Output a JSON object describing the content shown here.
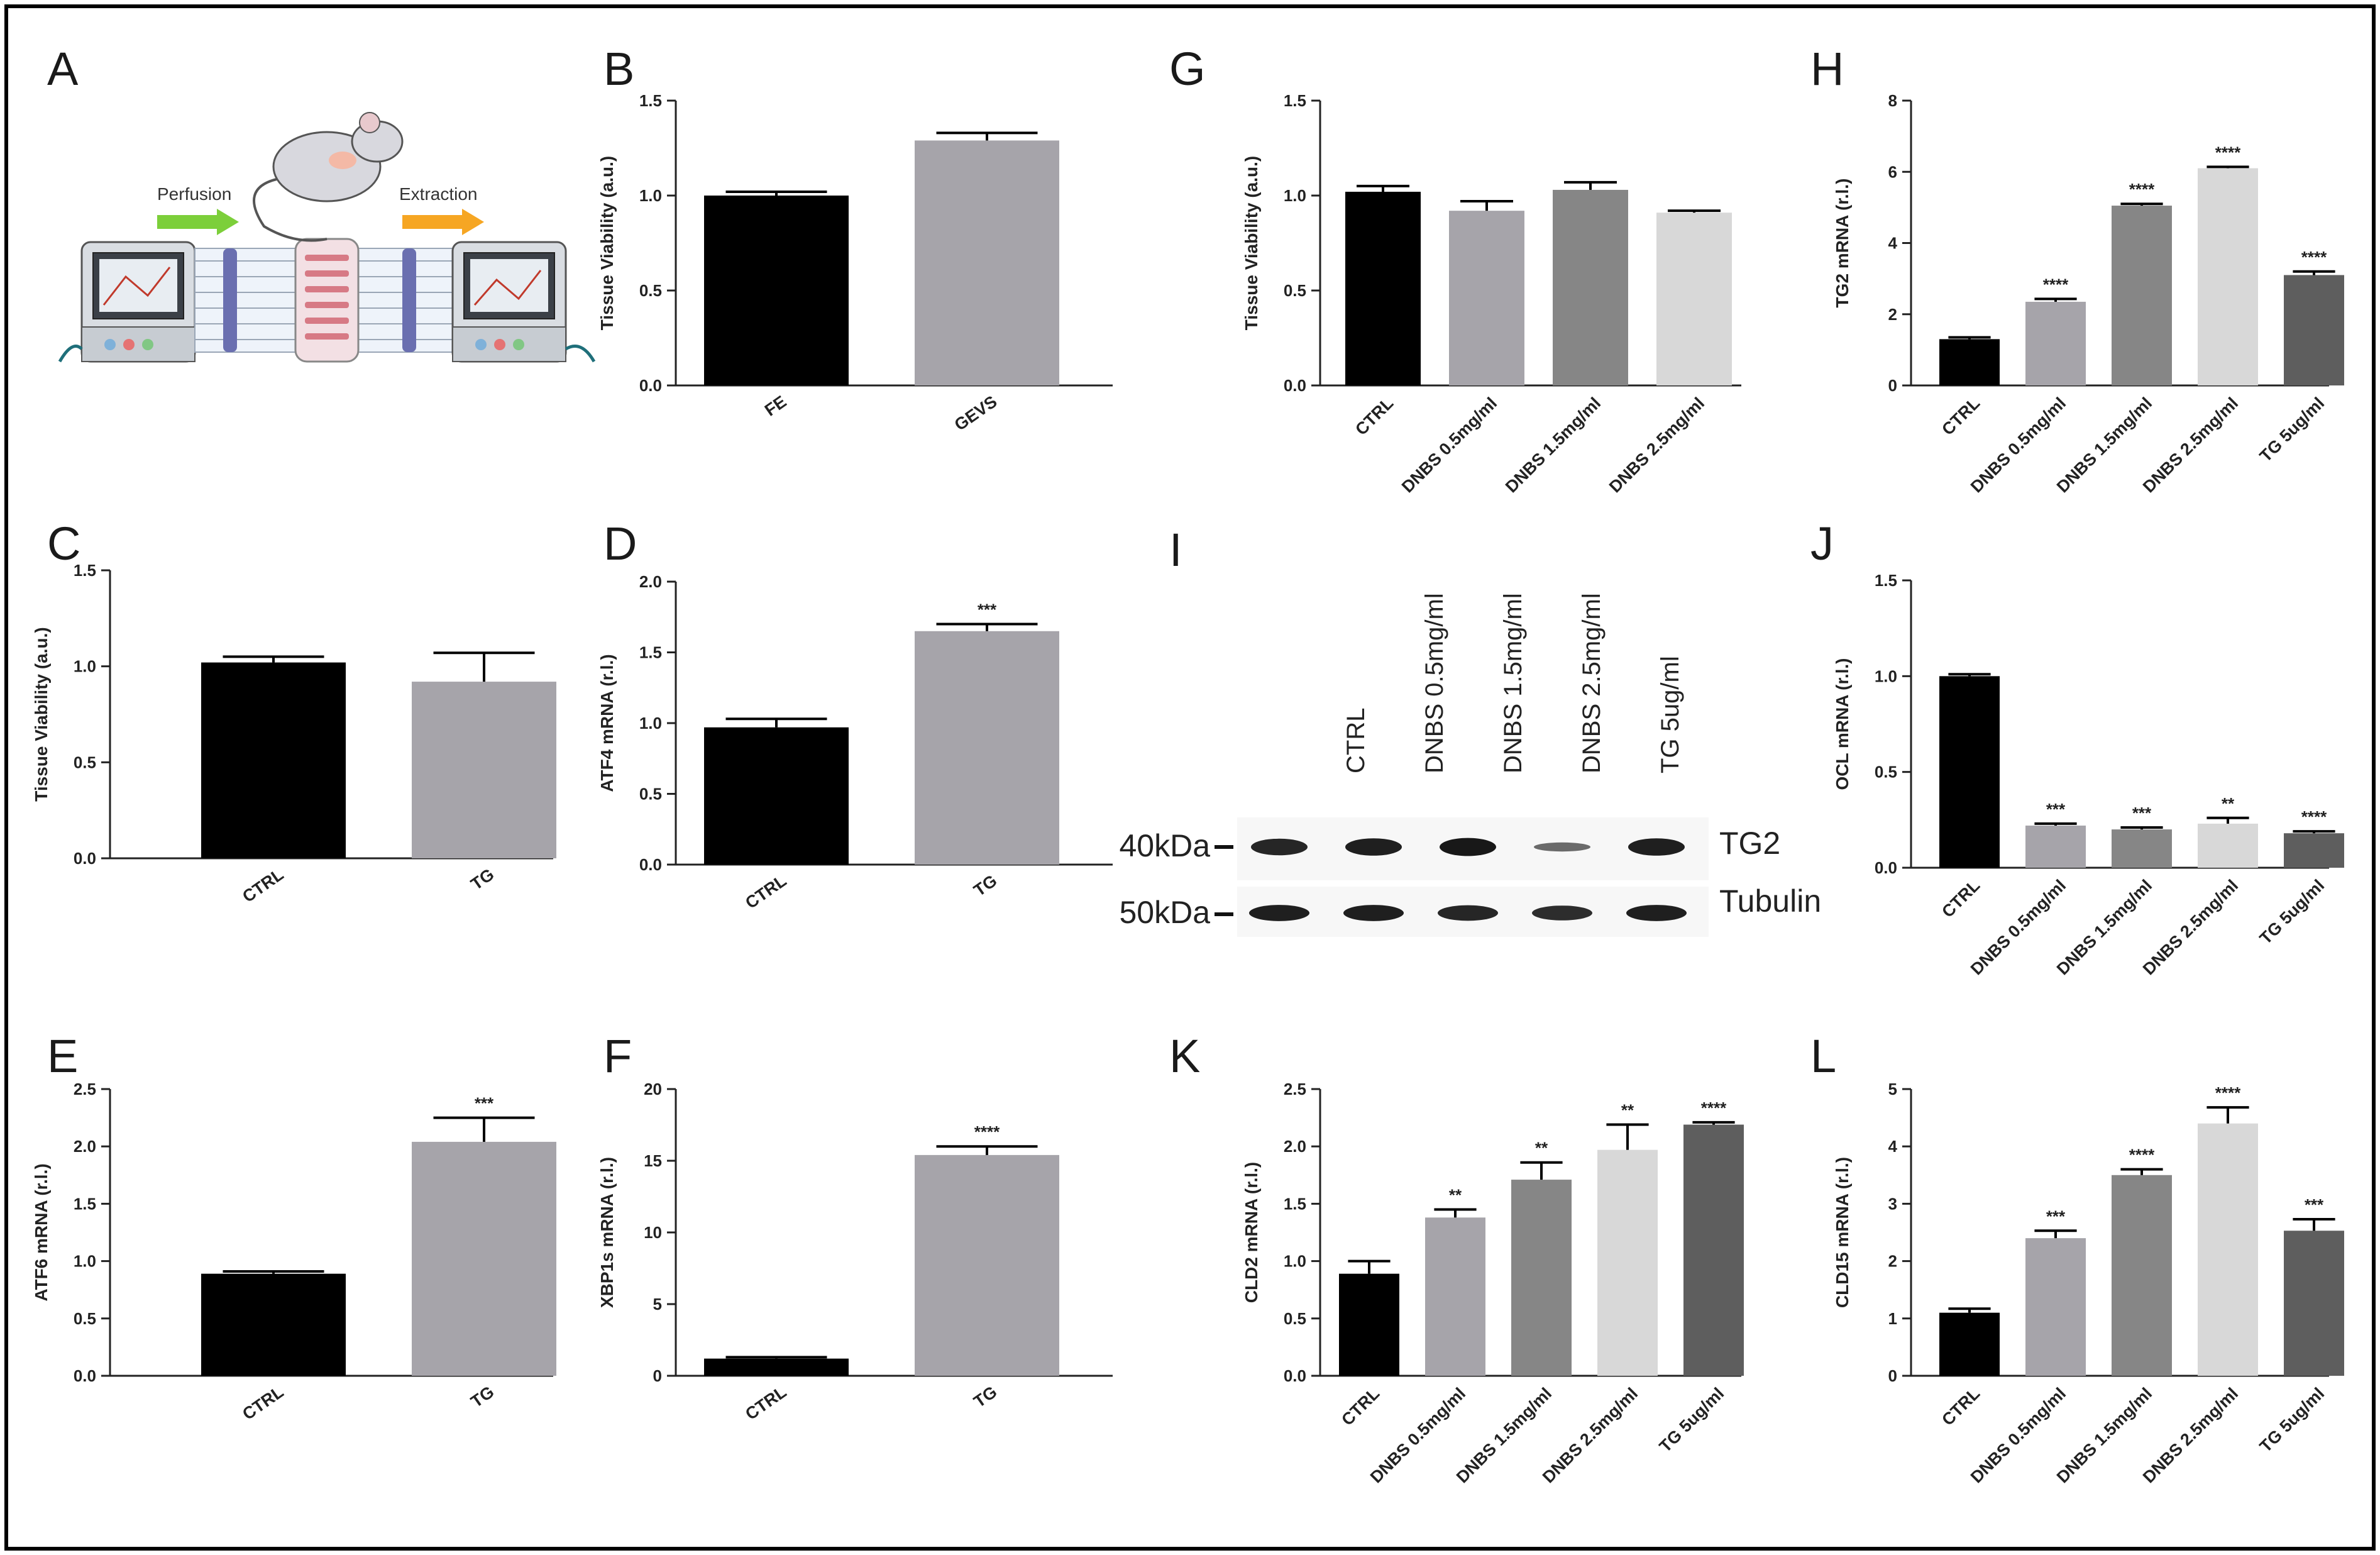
{
  "chart_data": [
    {
      "id": "B",
      "letter": "B",
      "type": "bar",
      "ylabel": "Tissue Viability (a.u.)",
      "ylim": [
        0,
        1.5
      ],
      "yticks": [
        "0.0",
        "0.5",
        "1.0",
        "1.5"
      ],
      "categories": [
        "FE",
        "GEVS"
      ],
      "values": [
        1.0,
        1.29
      ],
      "errors": [
        0.02,
        0.04
      ],
      "sig": [
        "",
        ""
      ],
      "colors": [
        "#000000",
        "#a6a4aa"
      ],
      "xlabel": ""
    },
    {
      "id": "C",
      "letter": "C",
      "type": "bar",
      "ylabel": "Tissue Viability (a.u.)",
      "ylim": [
        0,
        1.5
      ],
      "yticks": [
        "0.0",
        "0.5",
        "1.0",
        "1.5"
      ],
      "categories": [
        "CTRL",
        "TG"
      ],
      "values": [
        1.02,
        0.92
      ],
      "errors": [
        0.03,
        0.15
      ],
      "sig": [
        "",
        ""
      ],
      "colors": [
        "#000000",
        "#a6a4aa"
      ],
      "xlabel": ""
    },
    {
      "id": "D",
      "letter": "D",
      "type": "bar",
      "ylabel": "ATF4 mRNA (r.l.)",
      "ylim": [
        0,
        2.0
      ],
      "yticks": [
        "0.0",
        "0.5",
        "1.0",
        "1.5",
        "2.0"
      ],
      "categories": [
        "CTRL",
        "TG"
      ],
      "values": [
        0.97,
        1.65
      ],
      "errors": [
        0.06,
        0.05
      ],
      "sig": [
        "",
        "***"
      ],
      "colors": [
        "#000000",
        "#a6a4aa"
      ],
      "xlabel": ""
    },
    {
      "id": "E",
      "letter": "E",
      "type": "bar",
      "ylabel": "ATF6 mRNA (r.l.)",
      "ylim": [
        0,
        2.5
      ],
      "yticks": [
        "0.0",
        "0.5",
        "1.0",
        "1.5",
        "2.0",
        "2.5"
      ],
      "categories": [
        "CTRL",
        "TG"
      ],
      "values": [
        0.89,
        2.04
      ],
      "errors": [
        0.02,
        0.21
      ],
      "sig": [
        "",
        "***"
      ],
      "colors": [
        "#000000",
        "#a6a4aa"
      ],
      "xlabel": ""
    },
    {
      "id": "F",
      "letter": "F",
      "type": "bar",
      "ylabel": "XBP1s mRNA (r.l.)",
      "ylim": [
        0,
        20
      ],
      "yticks": [
        "0",
        "5",
        "10",
        "15",
        "20"
      ],
      "categories": [
        "CTRL",
        "TG"
      ],
      "values": [
        1.2,
        15.4
      ],
      "errors": [
        0.1,
        0.6
      ],
      "sig": [
        "",
        "****"
      ],
      "colors": [
        "#000000",
        "#a6a4aa"
      ],
      "xlabel": ""
    },
    {
      "id": "G",
      "letter": "G",
      "type": "bar",
      "ylabel": "Tissue Viability (a.u.)",
      "ylim": [
        0,
        1.5
      ],
      "yticks": [
        "0.0",
        "0.5",
        "1.0",
        "1.5"
      ],
      "categories": [
        "CTRL",
        "DNBS 0.5mg/ml",
        "DNBS 1.5mg/ml",
        "DNBS 2.5mg/ml"
      ],
      "values": [
        1.02,
        0.92,
        1.03,
        0.91
      ],
      "errors": [
        0.03,
        0.05,
        0.04,
        0.01
      ],
      "sig": [
        "",
        "",
        "",
        ""
      ],
      "colors": [
        "#000000",
        "#a6a4aa",
        "#868686",
        "#d8d8d8"
      ],
      "xlabel": ""
    },
    {
      "id": "H",
      "letter": "H",
      "type": "bar",
      "ylabel": "TG2 mRNA (r.l.)",
      "ylim": [
        0,
        8
      ],
      "yticks": [
        "0",
        "2",
        "4",
        "6",
        "8"
      ],
      "categories": [
        "CTRL",
        "DNBS 0.5mg/ml",
        "DNBS 1.5mg/ml",
        "DNBS 2.5mg/ml",
        "TG 5ug/ml"
      ],
      "values": [
        1.3,
        2.35,
        5.05,
        6.1,
        3.1
      ],
      "errors": [
        0.05,
        0.08,
        0.05,
        0.04,
        0.1
      ],
      "sig": [
        "",
        "****",
        "****",
        "****",
        "****"
      ],
      "colors": [
        "#000000",
        "#a6a4aa",
        "#868686",
        "#d8d8d8",
        "#5e5e5e"
      ],
      "xlabel": ""
    },
    {
      "id": "J",
      "letter": "J",
      "type": "bar",
      "ylabel": "OCL mRNA (r.l.)",
      "ylim": [
        0,
        1.5
      ],
      "yticks": [
        "0.0",
        "0.5",
        "1.0",
        "1.5"
      ],
      "categories": [
        "CTRL",
        "DNBS 0.5mg/ml",
        "DNBS 1.5mg/ml",
        "DNBS 2.5mg/ml",
        "TG 5ug/ml"
      ],
      "values": [
        1.0,
        0.22,
        0.2,
        0.23,
        0.18
      ],
      "errors": [
        0.01,
        0.01,
        0.01,
        0.03,
        0.01
      ],
      "sig": [
        "",
        "***",
        "***",
        "**",
        "****"
      ],
      "colors": [
        "#000000",
        "#a6a4aa",
        "#868686",
        "#d8d8d8",
        "#5e5e5e"
      ],
      "xlabel": ""
    },
    {
      "id": "K",
      "letter": "K",
      "type": "bar",
      "ylabel": "CLD2 mRNA (r.l.)",
      "ylim": [
        0,
        2.5
      ],
      "yticks": [
        "0.0",
        "0.5",
        "1.0",
        "1.5",
        "2.0",
        "2.5"
      ],
      "categories": [
        "CTRL",
        "DNBS 0.5mg/ml",
        "DNBS 1.5mg/ml",
        "DNBS 2.5mg/ml",
        "TG 5ug/ml"
      ],
      "values": [
        0.89,
        1.38,
        1.71,
        1.97,
        2.19
      ],
      "errors": [
        0.11,
        0.07,
        0.15,
        0.22,
        0.02
      ],
      "sig": [
        "",
        "**",
        "**",
        "**",
        "****"
      ],
      "colors": [
        "#000000",
        "#a6a4aa",
        "#868686",
        "#d8d8d8",
        "#5e5e5e"
      ],
      "xlabel": ""
    },
    {
      "id": "L",
      "letter": "L",
      "type": "bar",
      "ylabel": "CLD15 mRNA (r.l.)",
      "ylim": [
        0,
        5
      ],
      "yticks": [
        "0",
        "1",
        "2",
        "3",
        "4",
        "5"
      ],
      "categories": [
        "CTRL",
        "DNBS 0.5mg/ml",
        "DNBS 1.5mg/ml",
        "DNBS 2.5mg/ml",
        "TG 5ug/ml"
      ],
      "values": [
        1.1,
        2.4,
        3.5,
        4.4,
        2.53
      ],
      "errors": [
        0.07,
        0.13,
        0.1,
        0.28,
        0.2
      ],
      "sig": [
        "",
        "***",
        "****",
        "****",
        "***"
      ],
      "colors": [
        "#000000",
        "#a6a4aa",
        "#868686",
        "#d8d8d8",
        "#5e5e5e"
      ],
      "xlabel": ""
    }
  ],
  "diagram": {
    "letter": "A",
    "perfusion_label": "Perfusion",
    "extraction_label": "Extraction"
  },
  "blot": {
    "letter": "I",
    "lanes": [
      "CTRL",
      "DNBS 0.5mg/ml",
      "DNBS 1.5mg/ml",
      "DNBS 2.5mg/ml",
      "TG 5ug/ml"
    ],
    "marker_top": "40kDa",
    "marker_bottom": "50kDa",
    "protein_top": "TG2",
    "protein_bottom": "Tubulin",
    "tg2_intensity": [
      0.85,
      0.9,
      0.95,
      0.35,
      0.9
    ],
    "tubulin_intensity": [
      0.9,
      0.9,
      0.85,
      0.8,
      0.9
    ]
  },
  "colors": {
    "frame": "#000000",
    "arrow_green": "#7ccf3a",
    "arrow_orange": "#f6a623"
  }
}
